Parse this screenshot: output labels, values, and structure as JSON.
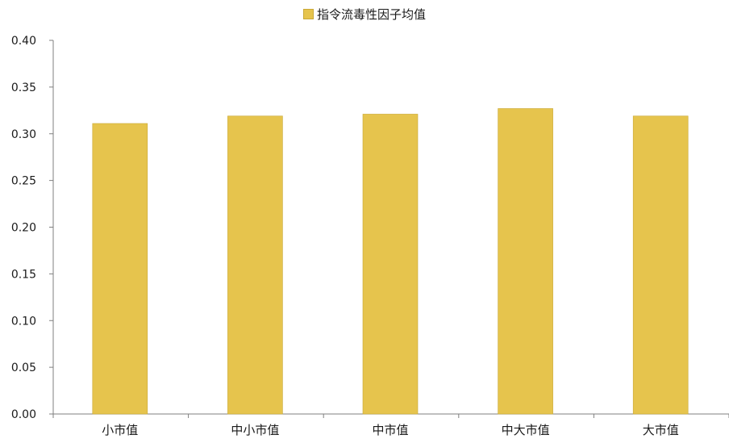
{
  "chart_data": {
    "type": "bar",
    "categories": [
      "小市值",
      "中小市值",
      "中市值",
      "中大市值",
      "大市值"
    ],
    "series": [
      {
        "name": "指令流毒性因子均值",
        "values": [
          0.311,
          0.319,
          0.321,
          0.327,
          0.319
        ],
        "color": "#E6C44D"
      }
    ],
    "ylim": [
      0,
      0.4
    ],
    "yticks": [
      "0.00",
      "0.05",
      "0.10",
      "0.15",
      "0.20",
      "0.25",
      "0.30",
      "0.35",
      "0.40"
    ],
    "grid": false,
    "legend_position": "top-center"
  }
}
